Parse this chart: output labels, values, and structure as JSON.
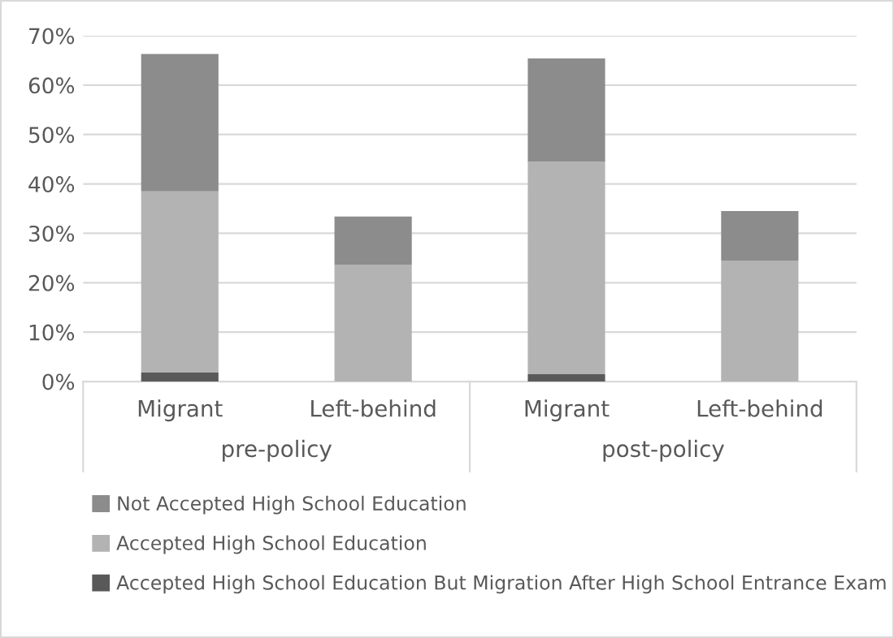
{
  "chart_data": {
    "type": "bar",
    "stacked": true,
    "categories": [
      "Migrant",
      "Left-behind",
      "Migrant",
      "Left-behind"
    ],
    "series": [
      {
        "name": "Accepted High School Education But Migration After High School Entrance Exam",
        "color": "#595959",
        "values": [
          1.8,
          0,
          1.5,
          0
        ]
      },
      {
        "name": "Accepted High School Education",
        "color": "#b3b3b3",
        "values": [
          36.7,
          23.6,
          43.0,
          24.5
        ]
      },
      {
        "name": "Not Accepted High School Education",
        "color": "#8c8c8c",
        "values": [
          27.8,
          9.8,
          20.9,
          10.0
        ]
      }
    ],
    "annotations": [
      "pre-policy",
      "post-policy"
    ],
    "ylim": [
      0,
      70
    ],
    "yticks": [
      {
        "value": 0,
        "label": "0%"
      },
      {
        "value": 10,
        "label": "10%"
      },
      {
        "value": 20,
        "label": "20%"
      },
      {
        "value": 30,
        "label": "30%"
      },
      {
        "value": 40,
        "label": "40%"
      },
      {
        "value": 50,
        "label": "50%"
      },
      {
        "value": 60,
        "label": "60%"
      },
      {
        "value": 70,
        "label": "70%"
      }
    ],
    "grid": "y",
    "legend": "bottom"
  }
}
